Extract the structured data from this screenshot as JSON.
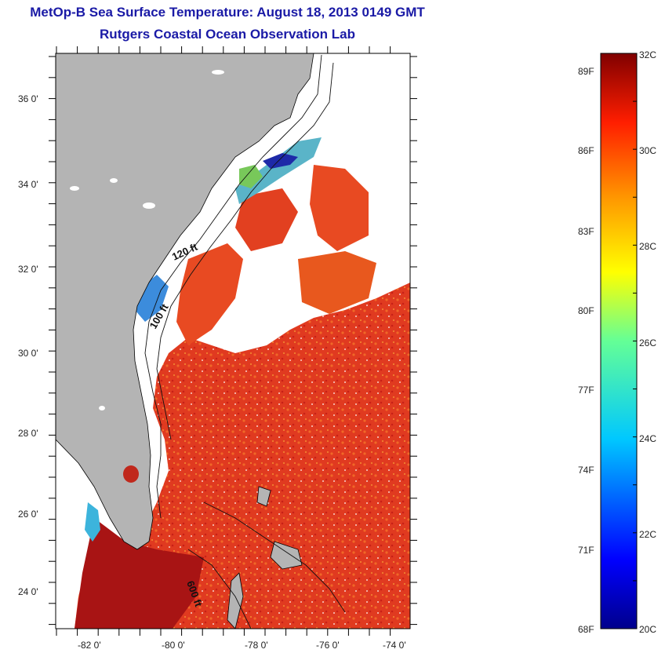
{
  "title": {
    "line1": "MetOp-B Sea Surface Temperature:  August 18, 2013 0149 GMT",
    "line2": "Rutgers Coastal Ocean Observation Lab"
  },
  "map": {
    "lat_ticks": [
      "36 0'",
      "34 0'",
      "32 0'",
      "30 0'",
      "28 0'",
      "26 0'",
      "24 0'"
    ],
    "lon_ticks": [
      "-82 0'",
      "-80 0'",
      "-78 0'",
      "-76 0'",
      "-74 0'"
    ],
    "contour_labels": [
      "120 ft",
      "100 ft",
      "600 ft"
    ],
    "colors": {
      "land": "#b4b4b4",
      "cloud": "#ffffff",
      "warm": "#e8321e",
      "hot": "#b41010",
      "mid": "#f07828",
      "cool": "#28a0dc",
      "cold": "#1428a0",
      "green": "#64c864"
    }
  },
  "colorbar": {
    "f_labels": [
      "89F",
      "86F",
      "83F",
      "80F",
      "77F",
      "74F",
      "71F",
      "68F"
    ],
    "c_labels": [
      "32C",
      "30C",
      "28C",
      "26C",
      "24C",
      "22C",
      "20C"
    ],
    "range_c": [
      20,
      32
    ]
  }
}
